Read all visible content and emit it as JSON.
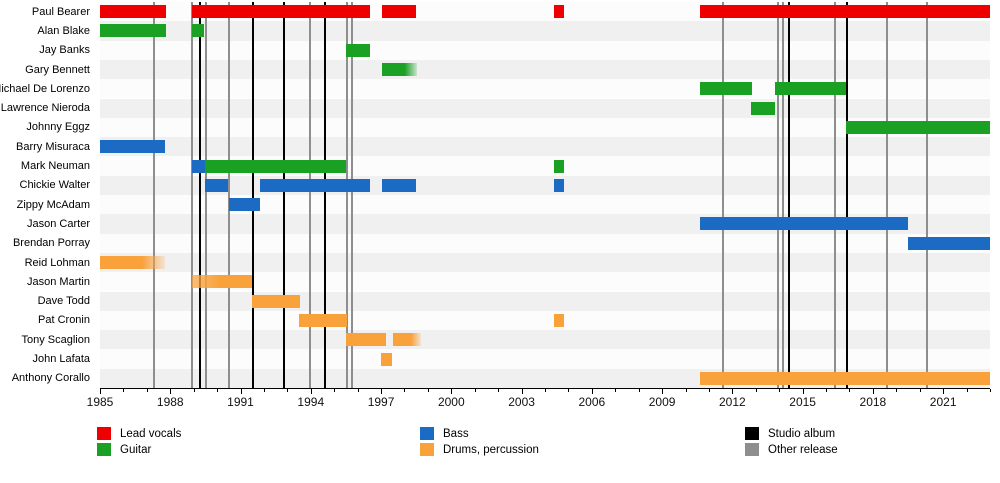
{
  "chart_data": {
    "type": "bar",
    "subtype": "timeline-gantt-band-members",
    "title": "",
    "xlabel": "",
    "ylabel": "",
    "x_axis": {
      "start_year": 1985,
      "end_year": 2023,
      "labeled_ticks": [
        1985,
        1988,
        1991,
        1994,
        1997,
        2000,
        2003,
        2006,
        2009,
        2012,
        2015,
        2018,
        2021
      ],
      "minor_tick_every_years": 1,
      "grid": false
    },
    "members": [
      {
        "name": "Paul Bearer",
        "segments": [
          {
            "from": 1985.0,
            "to": 1987.8,
            "role": "vocals"
          },
          {
            "from": 1988.93,
            "to": 1996.52,
            "role": "vocals"
          },
          {
            "from": 1997.05,
            "to": 1998.5,
            "role": "vocals"
          },
          {
            "from": 2004.4,
            "to": 2004.8,
            "role": "vocals"
          },
          {
            "from": 2010.6,
            "to": 2023.0,
            "role": "vocals"
          }
        ]
      },
      {
        "name": "Alan Blake",
        "segments": [
          {
            "from": 1985.0,
            "to": 1987.8,
            "role": "guitar"
          },
          {
            "from": 1988.93,
            "to": 1989.45,
            "role": "guitar"
          }
        ]
      },
      {
        "name": "Jay Banks",
        "segments": [
          {
            "from": 1995.5,
            "to": 1996.55,
            "role": "guitar"
          }
        ]
      },
      {
        "name": "Gary Bennett",
        "segments": [
          {
            "from": 1997.05,
            "to": 1998.55,
            "role": "guitar",
            "fade": "right"
          }
        ]
      },
      {
        "name": "Michael De Lorenzo",
        "segments": [
          {
            "from": 2010.6,
            "to": 2012.85,
            "role": "guitar"
          },
          {
            "from": 2013.8,
            "to": 2016.85,
            "role": "guitar"
          }
        ]
      },
      {
        "name": "Lawrence Nieroda",
        "segments": [
          {
            "from": 2012.8,
            "to": 2013.8,
            "role": "guitar"
          }
        ]
      },
      {
        "name": "Johnny Eggz",
        "segments": [
          {
            "from": 2016.85,
            "to": 2023.0,
            "role": "guitar"
          }
        ]
      },
      {
        "name": "Barry Misuraca",
        "segments": [
          {
            "from": 1985.0,
            "to": 1987.77,
            "role": "bass"
          }
        ]
      },
      {
        "name": "Mark Neuman",
        "segments": [
          {
            "from": 1988.93,
            "to": 1989.5,
            "role": "bass"
          },
          {
            "from": 1989.5,
            "to": 1995.5,
            "role": "guitar"
          },
          {
            "from": 2004.4,
            "to": 2004.8,
            "role": "guitar"
          }
        ]
      },
      {
        "name": "Chickie Walter",
        "segments": [
          {
            "from": 1989.5,
            "to": 1990.45,
            "role": "bass"
          },
          {
            "from": 1991.82,
            "to": 1996.52,
            "role": "bass"
          },
          {
            "from": 1997.05,
            "to": 1998.5,
            "role": "bass"
          },
          {
            "from": 2004.4,
            "to": 2004.8,
            "role": "bass"
          }
        ]
      },
      {
        "name": "Zippy McAdam",
        "segments": [
          {
            "from": 1990.5,
            "to": 1991.82,
            "role": "bass"
          }
        ]
      },
      {
        "name": "Jason Carter",
        "segments": [
          {
            "from": 2010.6,
            "to": 2019.5,
            "role": "bass"
          }
        ]
      },
      {
        "name": "Brendan Porray",
        "segments": [
          {
            "from": 2019.5,
            "to": 2023.0,
            "role": "bass"
          }
        ]
      },
      {
        "name": "Reid Lohman",
        "segments": [
          {
            "from": 1985.0,
            "to": 1987.77,
            "role": "drums",
            "fade": "right"
          }
        ]
      },
      {
        "name": "Jason Martin",
        "segments": [
          {
            "from": 1988.93,
            "to": 1991.5,
            "role": "drums",
            "fade": "left"
          }
        ]
      },
      {
        "name": "Dave Todd",
        "segments": [
          {
            "from": 1991.5,
            "to": 1993.55,
            "role": "drums"
          }
        ]
      },
      {
        "name": "Pat Cronin",
        "segments": [
          {
            "from": 1993.5,
            "to": 1995.55,
            "role": "drums"
          },
          {
            "from": 2004.4,
            "to": 2004.8,
            "role": "drums"
          }
        ]
      },
      {
        "name": "Tony Scaglion",
        "segments": [
          {
            "from": 1995.5,
            "to": 1997.2,
            "role": "drums"
          },
          {
            "from": 1997.5,
            "to": 1998.7,
            "role": "drums",
            "fade": "right"
          }
        ]
      },
      {
        "name": "John Lafata",
        "segments": [
          {
            "from": 1997.0,
            "to": 1997.45,
            "role": "drums"
          }
        ]
      },
      {
        "name": "Anthony Corallo",
        "segments": [
          {
            "from": 2010.6,
            "to": 2023.0,
            "role": "drums"
          }
        ]
      }
    ],
    "events": {
      "studio_albums": [
        1989.27,
        1991.53,
        1992.86,
        1994.6,
        2014.4,
        2016.9
      ],
      "other_releases": [
        1987.3,
        1988.93,
        1989.53,
        1990.5,
        1993.97,
        1995.55,
        1995.75,
        2011.6,
        2013.95,
        2014.17,
        2016.4,
        2018.6,
        2020.3
      ]
    },
    "legend": [
      {
        "label": "Lead vocals",
        "color_key": "vocals",
        "col": 0,
        "row": 0
      },
      {
        "label": "Guitar",
        "color_key": "guitar",
        "col": 0,
        "row": 1
      },
      {
        "label": "Bass",
        "color_key": "bass",
        "col": 1,
        "row": 0
      },
      {
        "label": "Drums, percussion",
        "color_key": "drums",
        "col": 1,
        "row": 1
      },
      {
        "label": "Studio album",
        "color_key": "studio",
        "col": 2,
        "row": 0
      },
      {
        "label": "Other release",
        "color_key": "other",
        "col": 2,
        "row": 1
      }
    ],
    "colors": {
      "vocals": "#ee0000",
      "guitar": "#1aa023",
      "bass": "#1b6ac4",
      "drums": "#f9a23c",
      "studio": "#000000",
      "other": "#8e8e8e",
      "stripe_odd": "#f0f0f0",
      "stripe_even": "#fcfcfc"
    }
  }
}
